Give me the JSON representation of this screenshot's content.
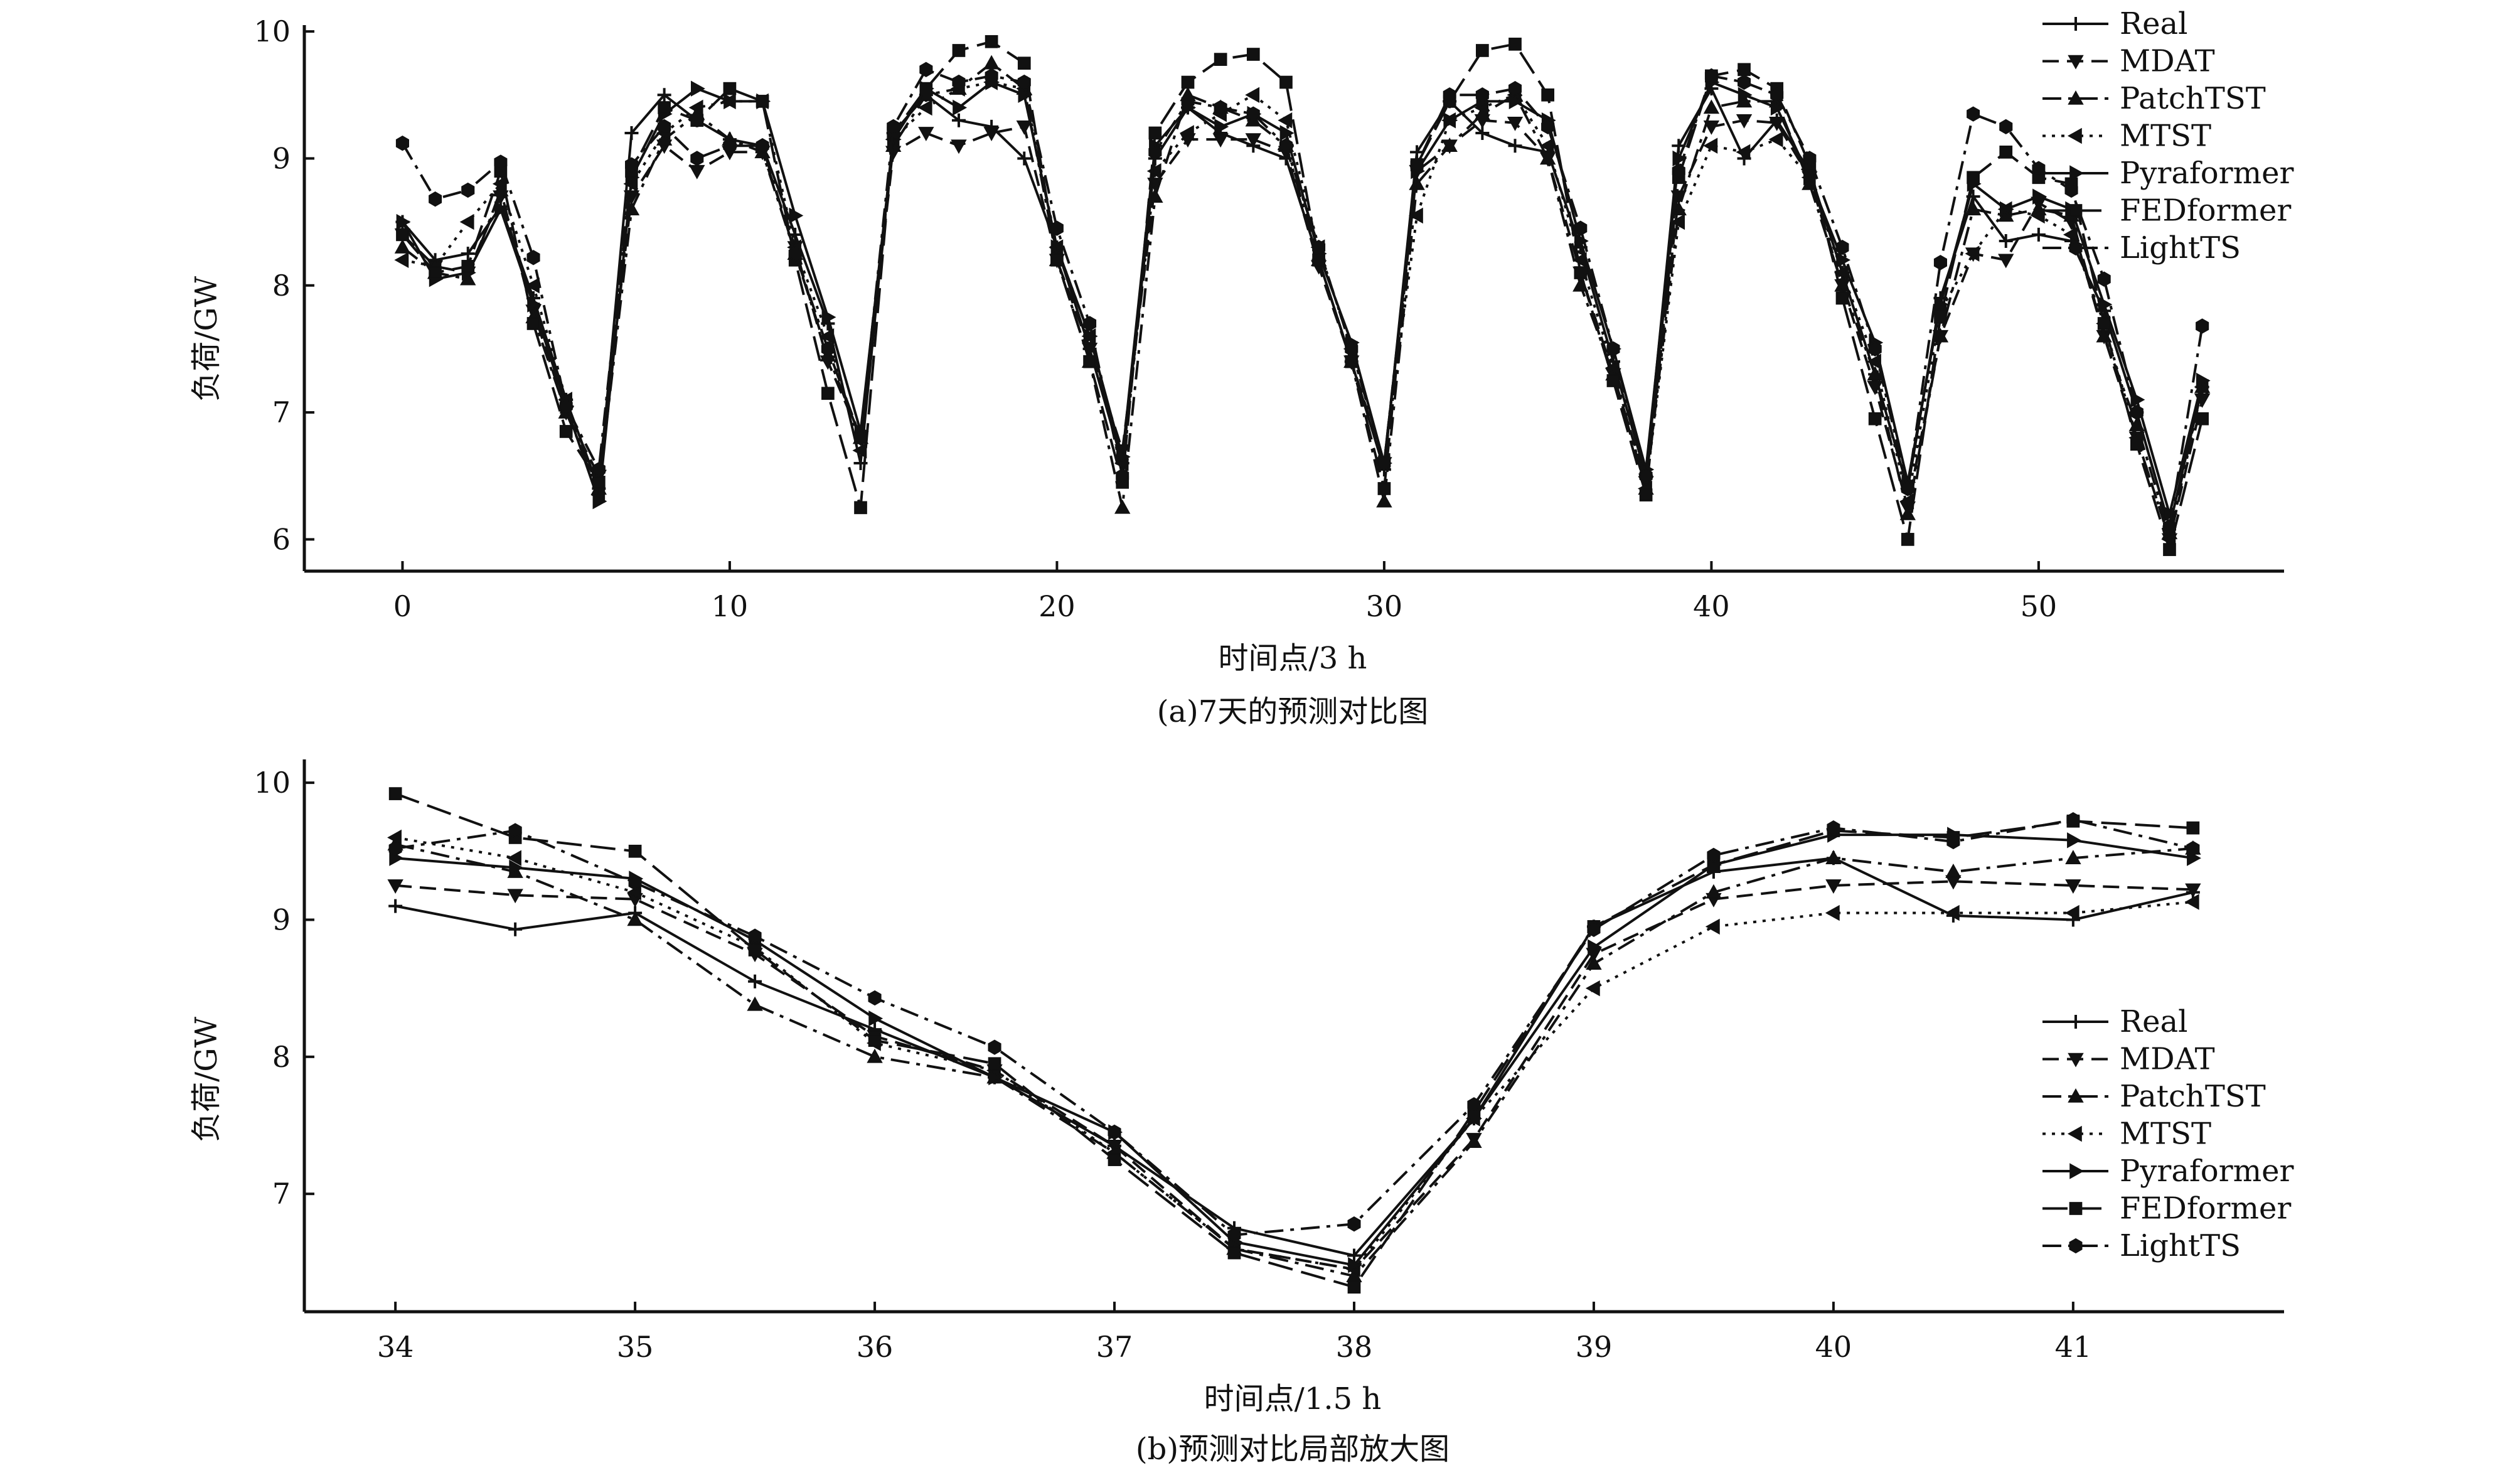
{
  "chart_data": [
    {
      "type": "line",
      "panel": "a",
      "title": "",
      "caption": "(a)7天的预测对比图",
      "xlabel": "时间点/3 h",
      "ylabel": "负荷/GW",
      "xlim": [
        -3,
        57.5
      ],
      "ylim": [
        5.75,
        10.05
      ],
      "xticks": [
        0,
        10,
        20,
        30,
        40,
        50
      ],
      "yticks": [
        6,
        7,
        8,
        9,
        10
      ],
      "legend": "top-right",
      "series": [
        {
          "name": "Real",
          "marker": "plus",
          "dash": "solid",
          "values": [
            8.5,
            8.2,
            8.25,
            8.62,
            7.9,
            7.1,
            6.4,
            9.2,
            9.5,
            9.3,
            9.15,
            9.1,
            8.4,
            7.7,
            6.6,
            9.2,
            9.5,
            9.3,
            9.25,
            9.0,
            8.3,
            7.5,
            6.6,
            9.0,
            9.4,
            9.2,
            9.1,
            9.0,
            8.2,
            7.4,
            6.55,
            9.05,
            9.45,
            9.2,
            9.1,
            9.05,
            8.3,
            7.4,
            6.5,
            9.1,
            9.55,
            9.0,
            9.3,
            8.9,
            8.1,
            7.3,
            6.4,
            7.9,
            8.7,
            8.35,
            8.4,
            8.35,
            7.8,
            7.0,
            6.1,
            7.2
          ]
        },
        {
          "name": "MDAT",
          "marker": "triangle-down",
          "dash": "dashed",
          "values": [
            8.4,
            8.15,
            8.1,
            8.7,
            7.8,
            7.0,
            6.5,
            8.7,
            9.1,
            8.9,
            9.05,
            9.05,
            8.3,
            7.4,
            6.8,
            9.05,
            9.2,
            9.1,
            9.2,
            9.25,
            8.2,
            7.5,
            6.7,
            8.8,
            9.15,
            9.15,
            9.15,
            9.05,
            8.15,
            7.4,
            6.6,
            8.9,
            9.1,
            9.3,
            9.28,
            9.0,
            8.1,
            7.3,
            6.45,
            8.7,
            9.25,
            9.3,
            9.28,
            8.85,
            8.0,
            7.2,
            6.25,
            7.6,
            8.25,
            8.2,
            8.65,
            8.5,
            7.6,
            6.8,
            6.0,
            7.1
          ]
        },
        {
          "name": "PatchTST",
          "marker": "triangle-up",
          "dash": "dashdot",
          "values": [
            8.3,
            8.1,
            8.05,
            8.75,
            7.75,
            7.0,
            6.4,
            8.6,
            9.15,
            9.35,
            9.15,
            9.05,
            8.25,
            7.45,
            6.8,
            9.1,
            9.5,
            9.55,
            9.75,
            9.55,
            8.2,
            7.4,
            6.25,
            8.7,
            9.5,
            9.4,
            9.3,
            9.1,
            8.2,
            7.4,
            6.3,
            8.8,
            9.1,
            9.35,
            9.5,
            9.0,
            8.0,
            7.3,
            6.4,
            8.6,
            9.4,
            9.45,
            9.45,
            8.8,
            8.0,
            7.3,
            6.2,
            7.6,
            8.6,
            8.55,
            8.6,
            8.55,
            7.6,
            6.9,
            6.05,
            7.2
          ]
        },
        {
          "name": "MTST",
          "marker": "triangle-left",
          "dash": "dotted",
          "values": [
            8.2,
            8.15,
            8.5,
            8.8,
            8.0,
            7.1,
            6.35,
            8.8,
            9.2,
            9.4,
            9.45,
            9.45,
            8.3,
            7.6,
            6.7,
            9.15,
            9.4,
            9.55,
            9.6,
            9.55,
            8.3,
            7.6,
            6.6,
            8.9,
            9.2,
            9.35,
            9.5,
            9.3,
            8.3,
            7.5,
            6.6,
            8.55,
            9.3,
            9.4,
            9.5,
            9.1,
            8.2,
            7.35,
            6.4,
            8.5,
            9.1,
            9.05,
            9.15,
            8.85,
            8.1,
            7.4,
            6.3,
            7.8,
            8.25,
            8.6,
            8.55,
            8.4,
            7.7,
            6.8,
            6.0,
            7.2
          ]
        },
        {
          "name": "Pyraformer",
          "marker": "triangle-right",
          "dash": "solid",
          "values": [
            8.5,
            8.05,
            8.1,
            8.6,
            7.85,
            7.05,
            6.3,
            8.85,
            9.35,
            9.55,
            9.45,
            9.45,
            8.55,
            7.75,
            6.85,
            9.15,
            9.55,
            9.4,
            9.6,
            9.5,
            8.3,
            7.6,
            6.65,
            9.1,
            9.4,
            9.25,
            9.35,
            9.2,
            8.25,
            7.55,
            6.6,
            8.9,
            9.3,
            9.45,
            9.45,
            9.3,
            8.35,
            7.5,
            6.55,
            9.0,
            9.6,
            9.5,
            9.4,
            8.85,
            8.2,
            7.55,
            6.45,
            7.85,
            8.8,
            8.6,
            8.7,
            8.6,
            7.85,
            7.1,
            6.2,
            7.25
          ]
        },
        {
          "name": "FEDformer",
          "marker": "square",
          "dash": "longdash",
          "values": [
            8.4,
            8.1,
            8.15,
            8.9,
            7.7,
            6.85,
            6.45,
            8.9,
            9.4,
            9.3,
            9.55,
            9.45,
            8.2,
            7.15,
            6.25,
            9.2,
            9.55,
            9.85,
            9.92,
            9.75,
            8.2,
            7.4,
            6.45,
            9.2,
            9.6,
            9.78,
            9.82,
            9.6,
            8.2,
            7.4,
            6.4,
            8.95,
            9.45,
            9.85,
            9.9,
            9.5,
            8.1,
            7.25,
            6.35,
            8.85,
            9.65,
            9.7,
            9.55,
            8.95,
            7.9,
            6.95,
            6.0,
            7.75,
            8.85,
            9.05,
            8.85,
            8.8,
            7.7,
            6.75,
            5.92,
            6.95
          ]
        },
        {
          "name": "LightTS",
          "marker": "hexagon",
          "dash": "dashdot",
          "values": [
            9.12,
            8.68,
            8.75,
            8.97,
            8.22,
            7.05,
            6.55,
            8.95,
            9.25,
            9.0,
            9.1,
            9.1,
            8.25,
            7.5,
            6.8,
            9.25,
            9.7,
            9.6,
            9.65,
            9.6,
            8.45,
            7.7,
            6.5,
            9.05,
            9.45,
            9.4,
            9.35,
            9.1,
            8.3,
            7.5,
            6.6,
            8.95,
            9.5,
            9.5,
            9.55,
            9.25,
            8.45,
            7.5,
            6.5,
            8.9,
            9.65,
            9.6,
            9.5,
            9.0,
            8.3,
            7.5,
            6.4,
            8.18,
            9.35,
            9.25,
            8.92,
            8.75,
            8.05,
            7.0,
            6.1,
            7.68
          ]
        }
      ]
    },
    {
      "type": "line",
      "panel": "b",
      "title": "",
      "caption": "(b)预测对比局部放大图",
      "xlabel": "时间点/1.5 h",
      "ylabel": "负荷/GW",
      "x": [
        34,
        34.5,
        35,
        35.5,
        36,
        36.5,
        37,
        37.5,
        38,
        38.5,
        39,
        39.5,
        40,
        40.5,
        41,
        41.5
      ],
      "xlim": [
        33.62,
        41.88
      ],
      "ylim": [
        6.14,
        10.17
      ],
      "xticks": [
        34,
        35,
        36,
        37,
        38,
        39,
        40,
        41
      ],
      "yticks": [
        7,
        8,
        9,
        10
      ],
      "legend": "right",
      "series": [
        {
          "name": "Real",
          "marker": "plus",
          "dash": "solid",
          "values": [
            9.1,
            8.93,
            9.05,
            8.55,
            8.2,
            7.85,
            7.35,
            6.75,
            6.55,
            7.55,
            8.95,
            9.35,
            9.45,
            9.03,
            9.0,
            9.2
          ]
        },
        {
          "name": "MDAT",
          "marker": "triangle-down",
          "dash": "dashed",
          "values": [
            9.25,
            9.18,
            9.15,
            8.75,
            8.15,
            7.9,
            7.35,
            6.6,
            6.45,
            7.4,
            8.75,
            9.15,
            9.25,
            9.28,
            9.25,
            9.22
          ]
        },
        {
          "name": "PatchTST",
          "marker": "triangle-up",
          "dash": "dashdot",
          "values": [
            9.55,
            9.35,
            9.0,
            8.38,
            8.0,
            7.85,
            7.3,
            6.6,
            6.4,
            7.38,
            8.68,
            9.2,
            9.45,
            9.35,
            9.45,
            9.52
          ]
        },
        {
          "name": "MTST",
          "marker": "triangle-left",
          "dash": "dotted",
          "values": [
            9.6,
            9.45,
            9.2,
            8.8,
            8.1,
            7.9,
            7.3,
            6.6,
            6.45,
            7.55,
            8.5,
            8.95,
            9.05,
            9.05,
            9.05,
            9.13
          ]
        },
        {
          "name": "Pyraformer",
          "marker": "triangle-right",
          "dash": "solid",
          "values": [
            9.45,
            9.38,
            9.3,
            8.85,
            8.28,
            7.85,
            7.45,
            6.65,
            6.48,
            7.55,
            8.8,
            9.4,
            9.62,
            9.62,
            9.58,
            9.45
          ]
        },
        {
          "name": "FEDformer",
          "marker": "square",
          "dash": "longdash",
          "values": [
            9.92,
            9.6,
            9.5,
            8.78,
            8.12,
            7.95,
            7.25,
            6.57,
            6.32,
            7.6,
            8.95,
            9.4,
            9.65,
            9.6,
            9.72,
            9.67
          ]
        },
        {
          "name": "LightTS",
          "marker": "hexagon",
          "dash": "dashdot",
          "values": [
            9.52,
            9.65,
            9.27,
            8.88,
            8.43,
            8.07,
            7.45,
            6.7,
            6.78,
            7.65,
            8.93,
            9.47,
            9.67,
            9.57,
            9.73,
            9.52
          ]
        }
      ]
    }
  ]
}
